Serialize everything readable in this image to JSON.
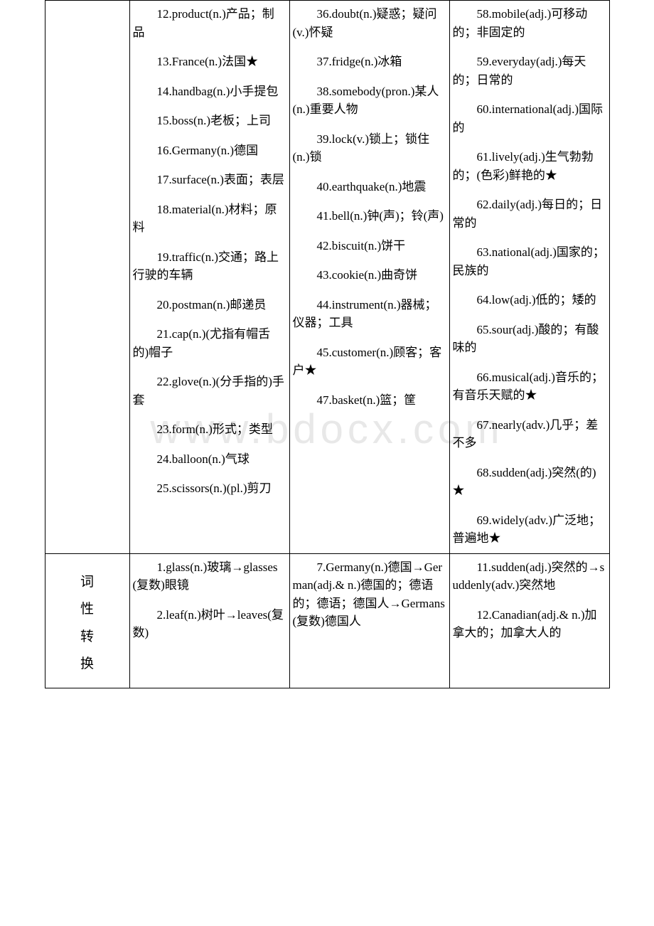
{
  "watermark": "www.bdocx.com",
  "row1": {
    "label": "",
    "colA": [
      "12.product(n.)产品；制品",
      "13.France(n.)法国★",
      "14.handbag(n.)小手提包",
      "15.boss(n.)老板；上司",
      "16.Germany(n.)德国",
      "17.surface(n.)表面；表层",
      "18.material(n.)材料；原料",
      "19.traffic(n.)交通；路上行驶的车辆",
      "20.postman(n.)邮递员",
      "21.cap(n.)(尤指有帽舌的)帽子",
      "22.glove(n.)(分手指的)手套",
      "23.form(n.)形式；类型",
      "24.balloon(n.)气球",
      "25.scissors(n.)(pl.)剪刀"
    ],
    "colB": [
      "36.doubt(n.)疑惑；疑问 (v.)怀疑",
      "37.fridge(n.)冰箱",
      "38.somebody(pron.)某人 (n.)重要人物",
      "39.lock(v.)锁上；锁住 (n.)锁",
      "40.earthquake(n.)地震",
      "41.bell(n.)钟(声)；铃(声)",
      "42.biscuit(n.)饼干",
      "43.cookie(n.)曲奇饼",
      "44.instrument(n.)器械；仪器；工具",
      "45.customer(n.)顾客；客户★",
      "47.basket(n.)篮；筐"
    ],
    "colC": [
      "58.mobile(adj.)可移动的；非固定的",
      "59.everyday(adj.)每天的；日常的",
      "60.international(adj.)国际的",
      "61.lively(adj.)生气勃勃的；(色彩)鲜艳的★",
      "62.daily(adj.)每日的；日常的",
      "63.national(adj.)国家的；民族的",
      "64.low(adj.)低的；矮的",
      "65.sour(adj.)酸的；有酸味的",
      "66.musical(adj.)音乐的；有音乐天赋的★",
      "67.nearly(adv.)几乎；差不多",
      "68.sudden(adj.)突然(的)★",
      "69.widely(adv.)广泛地；普遍地★"
    ]
  },
  "row2": {
    "labelChars": [
      "词",
      "性",
      "转",
      "换"
    ],
    "colA": [
      "1.glass(n.)玻璃→glasses(复数)眼镜",
      "2.leaf(n.)树叶→leaves(复数)"
    ],
    "colB": [
      "7.Germany(n.)德国→German(adj.& n.)德国的；德语的；德语；德国人→Germans(复数)德国人"
    ],
    "colC": [
      "11.sudden(adj.)突然的→suddenly(adv.)突然地",
      "12.Canadian(adj.& n.)加拿大的；加拿大人的"
    ]
  }
}
